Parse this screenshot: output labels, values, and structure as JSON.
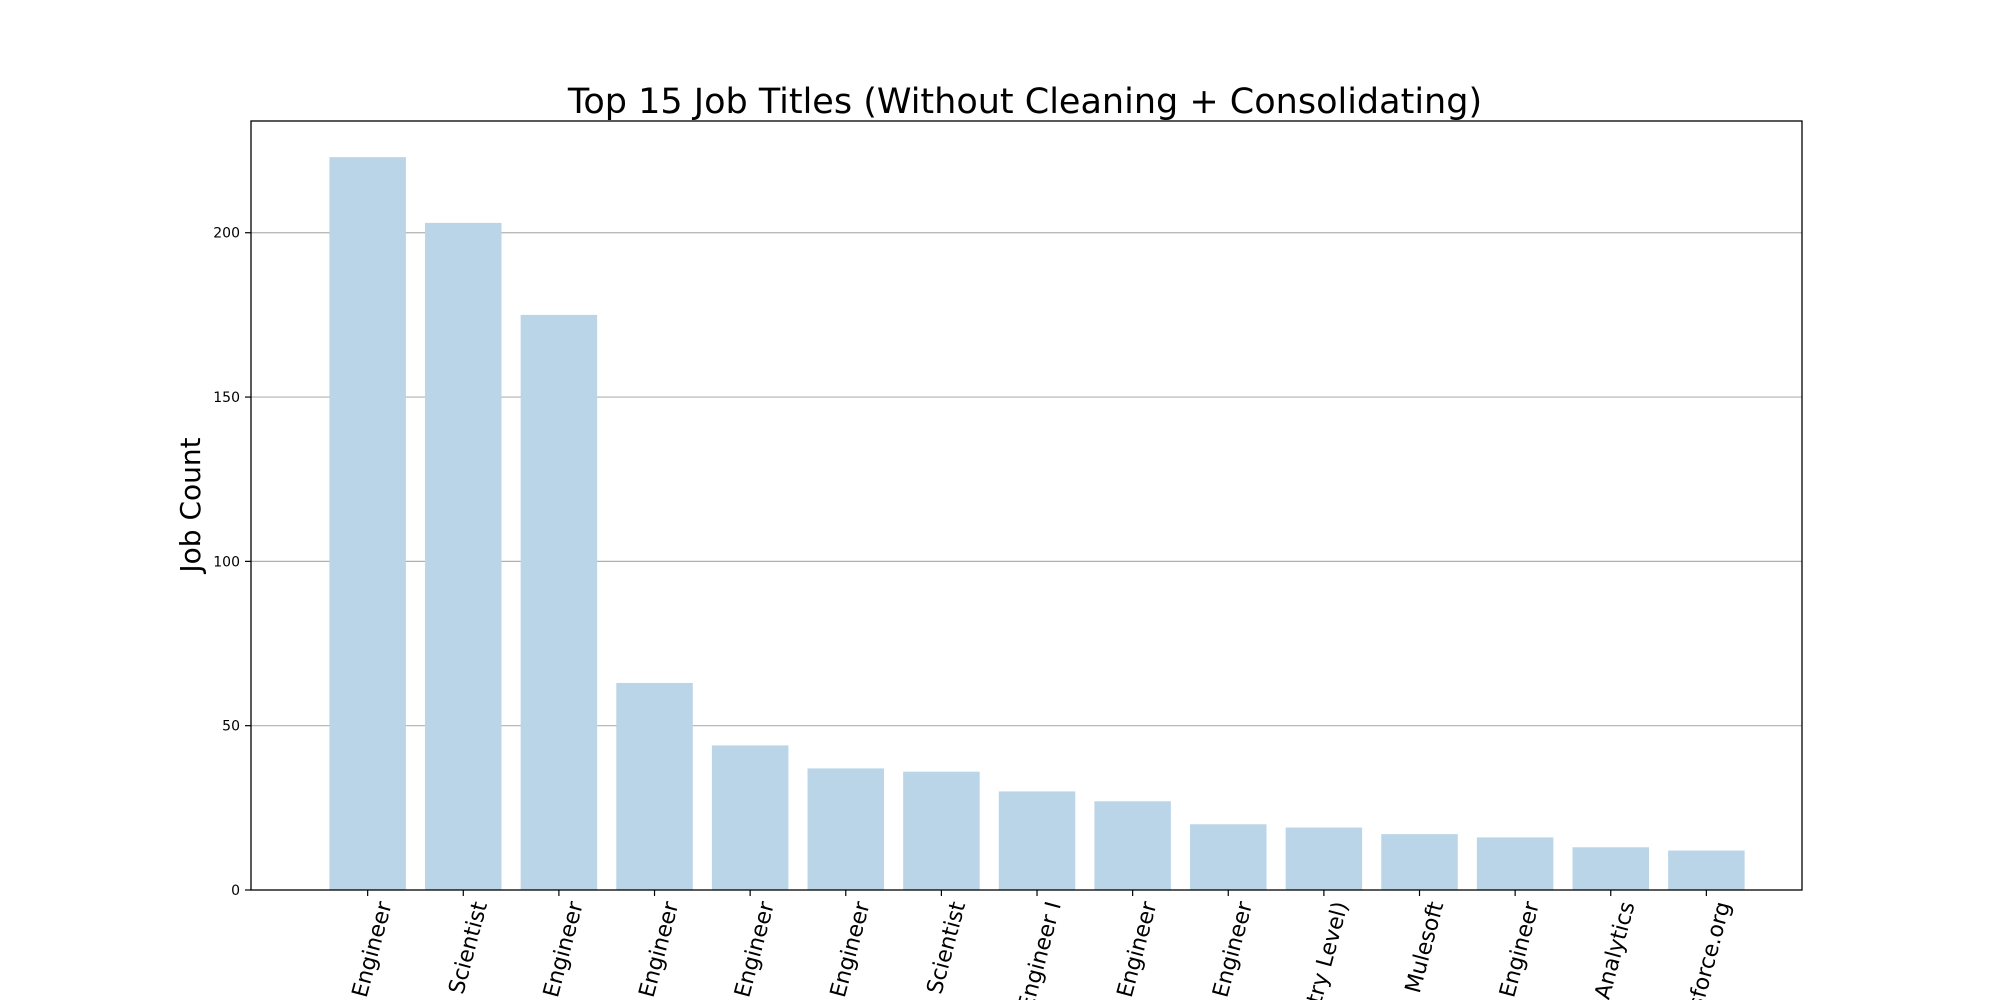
{
  "chart_data": {
    "type": "bar",
    "title": "Top 15 Job Titles (Without Cleaning + Consolidating)",
    "xlabel": "",
    "ylabel": "Job Count",
    "ylim": [
      0,
      234
    ],
    "yticks": [
      0,
      50,
      100,
      150,
      200
    ],
    "grid": "y",
    "bar_color": "#bad5e8",
    "categories": [
      "Engineer",
      "a Scientist",
      "Engineer",
      "Engineer",
      "Engineer",
      "Engineer",
      "a Scientist",
      "Engineer I",
      "Engineer",
      "Engineer",
      "try Level)",
      "Mulesoft",
      "Engineer",
      "Analytics",
      "sforce.org"
    ],
    "values": [
      223,
      203,
      175,
      63,
      44,
      37,
      36,
      30,
      27,
      20,
      19,
      17,
      16,
      13,
      12
    ]
  }
}
